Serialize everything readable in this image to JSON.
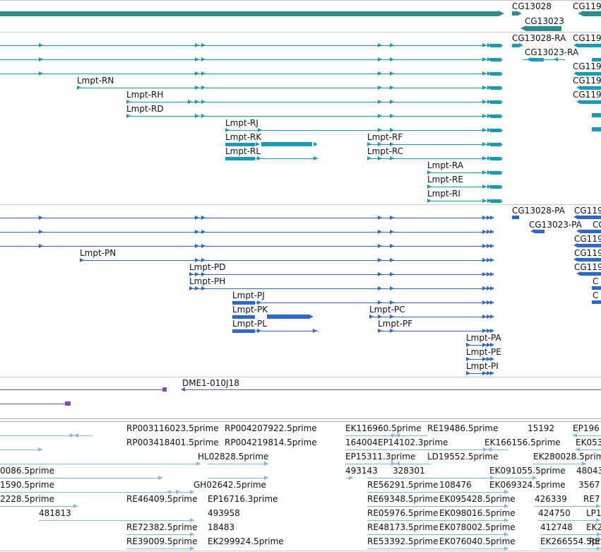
{
  "colors": {
    "gene": "#2e8b8b",
    "transcript": "#1a9bb5",
    "protein": "#2d68c8",
    "clone": "#7a4fb0",
    "est": "#86b8dc",
    "separator": "#c8c8c8"
  },
  "genes": {
    "labels": [
      "CG13028",
      "CG13023",
      "CG119"
    ]
  },
  "transcripts": {
    "labels": [
      "CG13028-RA",
      "CG119",
      "CG13023-RA",
      "CG119",
      "Lmpt-RN",
      "CG119",
      "Lmpt-RH",
      "CG119",
      "Lmpt-RD",
      "Lmpt-RJ",
      "Lmpt-RK",
      "Lmpt-RF",
      "Lmpt-RL",
      "Lmpt-RC",
      "Lmpt-RA",
      "Lmpt-RE",
      "Lmpt-RI"
    ]
  },
  "proteins": {
    "labels": [
      "CG13028-PA",
      "CG119",
      "CG13023-PA",
      "CG",
      "CG119",
      "Lmpt-PN",
      "CG119",
      "CG119",
      "Lmpt-PD",
      "C",
      "Lmpt-PH",
      "C",
      "Lmpt-PJ",
      "Lmpt-PK",
      "Lmpt-PC",
      "Lmpt-PL",
      "Lmpt-PF",
      "Lmpt-PA",
      "Lmpt-PE",
      "Lmpt-PI"
    ]
  },
  "clones": {
    "labels": [
      "DME1-010J18"
    ]
  },
  "ests": {
    "labels": [
      "RP003116023.5prime",
      "RP004207922.5prime",
      "EK116960.5prime",
      "RE19486.5prime",
      "15192",
      "EP196",
      "RP003418401.5prime",
      "RP004219814.5prime",
      "164004",
      "EP14102.3prime",
      "EK166156.5prime",
      "EK053",
      "HL02828.5prime",
      "EP15311.3prime",
      "LD19552.5prime",
      "EK280028.5prime",
      "0086.5prime",
      "493143",
      "328301",
      "EK091055.5prime",
      "48043",
      "1590.5prime",
      "GH02642.5prime",
      "RE56291.5prime",
      "108476",
      "EK069324.5prime",
      "3567",
      "2228.5prime",
      "RE46409.5prime",
      "EP16716.3prime",
      "RE69348.5prime",
      "EK095428.5prime",
      "426339",
      "RE7",
      "481813",
      "493958",
      "RE05976.5prime",
      "EK098016.5prime",
      "424750",
      "LP1",
      "RE72382.5prime",
      "18483",
      "RE48173.5prime",
      "EK078002.5prime",
      "412748",
      "EK2",
      "RE39009.5prime",
      "EK299924.5prime",
      "RE53392.5prime",
      "EK076040.5prime",
      "EK266554.5prime",
      "RE2"
    ]
  }
}
